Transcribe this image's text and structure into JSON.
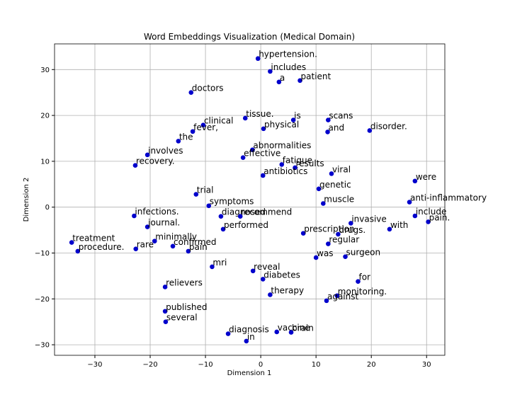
{
  "chart_data": {
    "type": "scatter",
    "title": "Word Embeddings Visualization (Medical Domain)",
    "xlabel": "Dimension 1",
    "ylabel": "Dimension 2",
    "color": "#0000cc",
    "grid": true,
    "xlim": [
      -37.3,
      33.3
    ],
    "ylim": [
      -32.3,
      35.6
    ],
    "xticks": [
      {
        "value": -30,
        "label": "−30"
      },
      {
        "value": -20,
        "label": "−20"
      },
      {
        "value": -10,
        "label": "−10"
      },
      0,
      10,
      20,
      30
    ],
    "yticks": [
      {
        "value": -30,
        "label": "−30"
      },
      {
        "value": -20,
        "label": "−20"
      },
      {
        "value": -10,
        "label": "−10"
      },
      0,
      10,
      20,
      30
    ],
    "labels": [
      "hypertension.",
      "includes",
      "a",
      "patient",
      "doctors",
      "tissue.",
      "is",
      "scans",
      "clinical",
      "physical",
      "fever,",
      "and",
      "disorder.",
      "the",
      "abnormalities",
      "involves",
      "effective",
      "recovery.",
      "fatigue",
      "results",
      "viral",
      "antibiotics",
      "were",
      "genetic",
      "trial",
      "muscle",
      "anti-inflammatory",
      "symptoms",
      "include",
      "infections.",
      "diagnosed",
      "recommend",
      "pain.",
      "invasive",
      "journal.",
      "performed",
      "with",
      "prescription",
      "drugs.",
      "minimally",
      "treatment",
      "regular",
      "confirmed",
      "rare",
      "procedure.",
      "pain",
      "was",
      "surgeon",
      "mri",
      "reveal",
      "diabetes",
      "for",
      "relievers",
      "therapy",
      "monitoring.",
      "against",
      "published",
      "several",
      "vaccine",
      "brain",
      "diagnosis",
      "in"
    ],
    "x": [
      -0.5,
      1.7,
      3.3,
      7.1,
      -12.6,
      -2.8,
      5.9,
      12.2,
      -10.4,
      0.5,
      -12.3,
      12.1,
      19.7,
      -14.9,
      -1.5,
      -20.5,
      -3.2,
      -22.7,
      3.8,
      6.2,
      12.8,
      0.4,
      27.9,
      10.5,
      -11.7,
      11.3,
      26.9,
      -9.4,
      27.9,
      -22.9,
      -7.2,
      -3.7,
      30.3,
      16.3,
      -20.5,
      -6.8,
      23.3,
      7.7,
      14.0,
      -19.2,
      -34.2,
      12.2,
      -15.9,
      -22.6,
      -33.1,
      -13.1,
      10.0,
      15.3,
      -8.8,
      -1.4,
      0.4,
      17.6,
      -17.3,
      1.7,
      13.8,
      11.9,
      -17.3,
      -17.2,
      2.9,
      5.5,
      -5.9,
      -2.6
    ],
    "values": [
      32.4,
      29.6,
      27.3,
      27.6,
      25.0,
      19.4,
      19.0,
      19.0,
      17.9,
      17.1,
      16.5,
      16.4,
      16.7,
      14.4,
      12.5,
      11.4,
      10.8,
      9.1,
      9.3,
      8.6,
      7.3,
      6.9,
      5.7,
      4.0,
      2.8,
      0.8,
      1.1,
      0.3,
      -1.9,
      -1.9,
      -2.0,
      -2.0,
      -3.2,
      -3.5,
      -4.3,
      -4.8,
      -4.8,
      -5.7,
      -5.9,
      -7.4,
      -7.7,
      -8.0,
      -8.5,
      -9.1,
      -9.6,
      -9.6,
      -11.0,
      -10.8,
      -13.0,
      -13.9,
      -15.7,
      -16.2,
      -17.4,
      -19.1,
      -19.3,
      -20.4,
      -22.7,
      -25.0,
      -27.2,
      -27.3,
      -27.6,
      -29.2
    ]
  }
}
